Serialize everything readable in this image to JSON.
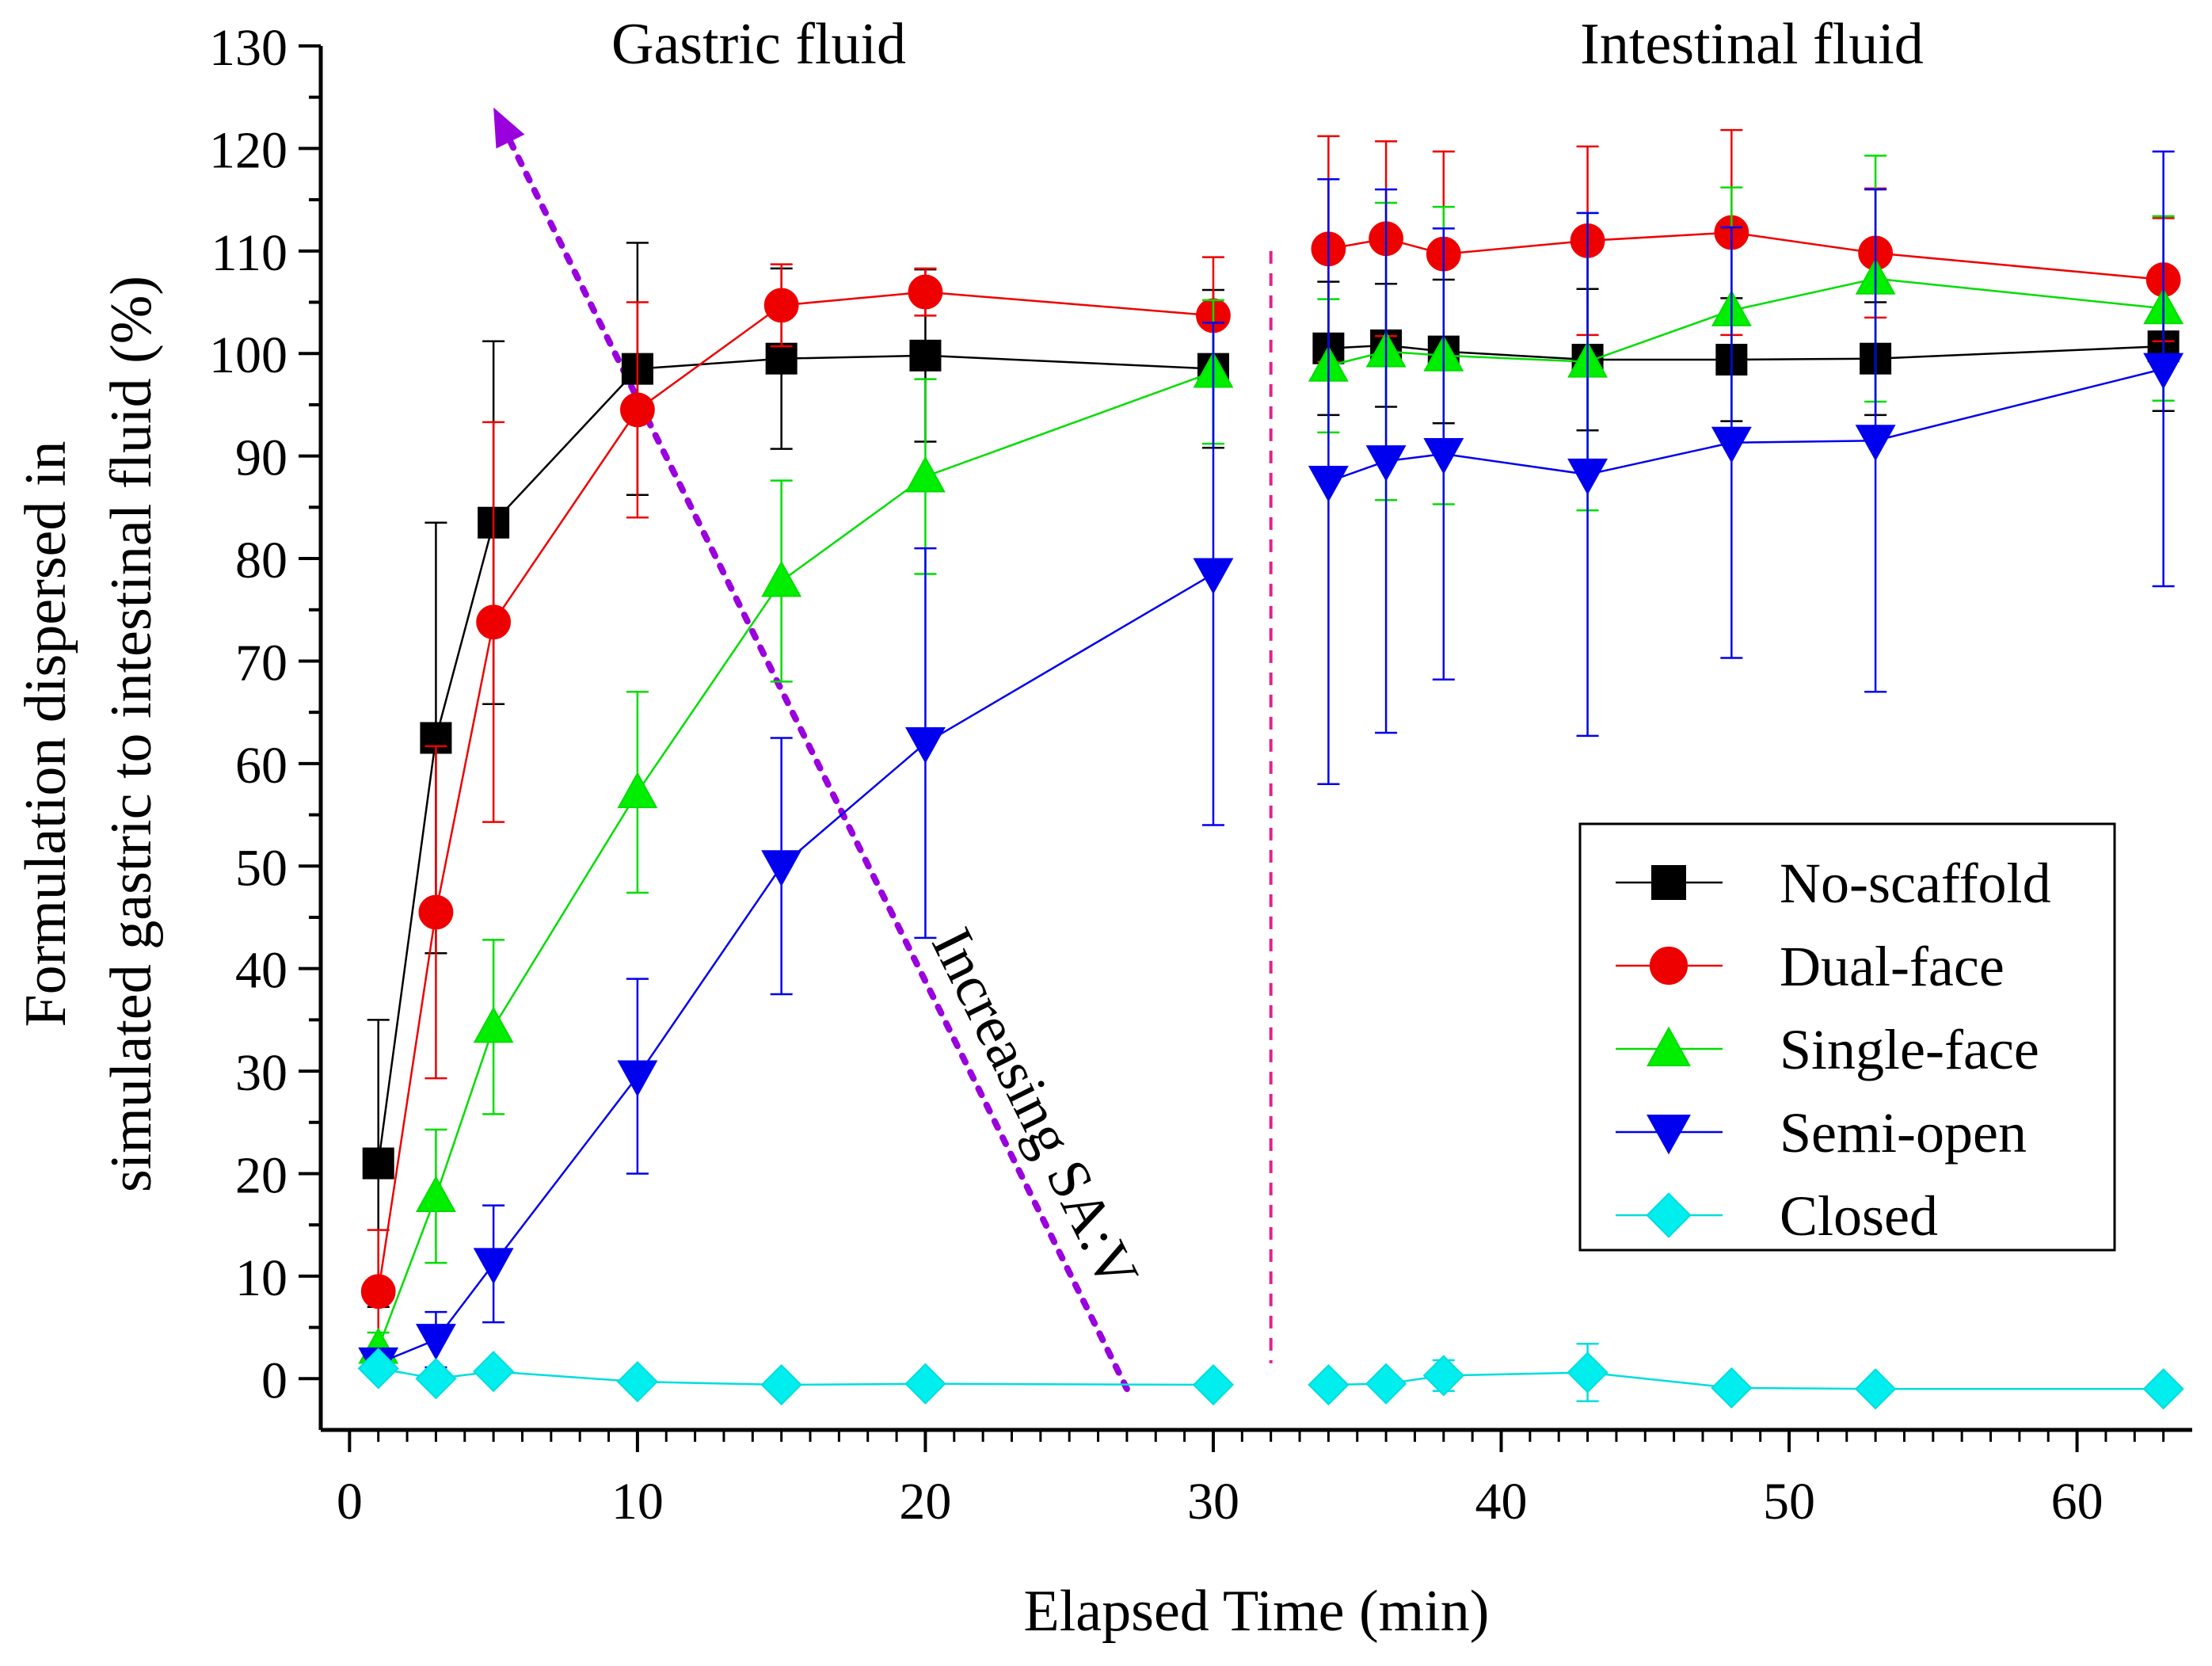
{
  "chart_data": {
    "type": "line",
    "title": "",
    "xlabel": "Elapsed Time (min)",
    "ylabel_line1": "Formulation dispersed in",
    "ylabel_line2": "simulated gastric to intestinal fluid (%)",
    "xlim": [
      -1,
      64
    ],
    "ylim": [
      -5,
      130
    ],
    "xticks": [
      0,
      10,
      20,
      30,
      40,
      50,
      60
    ],
    "yticks": [
      0,
      10,
      20,
      30,
      40,
      50,
      60,
      70,
      80,
      90,
      100,
      110,
      120,
      130
    ],
    "legend_position": "right-middle",
    "region_labels": {
      "gastric": "Gastric fluid",
      "intestinal": "Intestinal fluid"
    },
    "divider_x": 32,
    "annotation": {
      "text": "Increasing SA:V",
      "from": [
        27,
        -1
      ],
      "to": [
        5,
        124
      ],
      "color": "#9900dd"
    },
    "series": [
      {
        "name": "No-scaffold",
        "marker": "square",
        "color": "#000000",
        "fill": "#000000",
        "x": [
          1,
          3,
          5,
          10,
          15,
          20,
          30,
          34,
          36,
          38,
          43,
          48,
          53,
          63
        ],
        "y": [
          21,
          62.5,
          83.5,
          98.5,
          99.5,
          99.8,
          98.5,
          100.5,
          100.8,
          100.2,
          99.4,
          99.4,
          99.5,
          100.7
        ],
        "err": [
          14,
          21,
          17.7,
          12.3,
          8.8,
          8.4,
          7.7,
          6.5,
          6,
          7,
          6.9,
          6,
          5.5,
          6.3
        ]
      },
      {
        "name": "Dual-face",
        "marker": "circle",
        "color": "#ee0000",
        "fill": "#ee0000",
        "x": [
          1,
          3,
          5,
          10,
          15,
          20,
          30,
          34,
          36,
          38,
          43,
          48,
          53,
          63
        ],
        "y": [
          8.5,
          45.5,
          73.8,
          94.5,
          104.7,
          106,
          103.7,
          110.2,
          111.2,
          109.7,
          111,
          111.8,
          109.8,
          107.2
        ],
        "err": [
          6,
          16.2,
          19.5,
          10.5,
          4,
          2.3,
          5.7,
          11,
          9.5,
          10,
          9.2,
          10,
          6.3,
          6
        ]
      },
      {
        "name": "Single-face",
        "marker": "triangle-up",
        "color": "#00dd00",
        "fill": "#00ee00",
        "x": [
          1,
          3,
          5,
          10,
          15,
          20,
          30,
          34,
          36,
          38,
          43,
          48,
          53,
          63
        ],
        "y": [
          3,
          17.8,
          34.3,
          57.2,
          77.8,
          88,
          98.2,
          98.8,
          100.2,
          99.8,
          99.2,
          104.2,
          107.3,
          104.4
        ],
        "err": [
          1.5,
          6.5,
          8.5,
          9.8,
          9.8,
          9.5,
          7,
          6.5,
          14.5,
          14.5,
          14.5,
          12,
          12,
          9
        ]
      },
      {
        "name": "Semi-open",
        "marker": "triangle-down",
        "color": "#0000ee",
        "fill": "#0000ee",
        "x": [
          1,
          3,
          5,
          10,
          15,
          20,
          30,
          34,
          36,
          38,
          43,
          48,
          53,
          63
        ],
        "y": [
          1.5,
          3.8,
          11.2,
          29.5,
          50,
          62,
          78.5,
          87.5,
          89.5,
          90.2,
          88.2,
          91.3,
          91.5,
          98.5
        ],
        "err": [
          1,
          2.7,
          5.7,
          9.5,
          12.5,
          19,
          24.5,
          29.5,
          26.5,
          22,
          25.5,
          21,
          24.5,
          21.2
        ]
      },
      {
        "name": "Closed",
        "marker": "diamond",
        "color": "#00dddd",
        "fill": "#00eeee",
        "x": [
          1,
          3,
          5,
          10,
          15,
          20,
          30,
          34,
          36,
          38,
          43,
          48,
          53,
          63
        ],
        "y": [
          1,
          0,
          0.7,
          -0.3,
          -0.6,
          -0.5,
          -0.6,
          -0.6,
          -0.5,
          0.3,
          0.6,
          -0.9,
          -1,
          -1
        ],
        "err": [
          0.8,
          0.5,
          0.6,
          0.5,
          0.4,
          0.4,
          0.4,
          0.5,
          0.8,
          1.5,
          2.8,
          0.6,
          0.5,
          0.4
        ]
      }
    ]
  }
}
